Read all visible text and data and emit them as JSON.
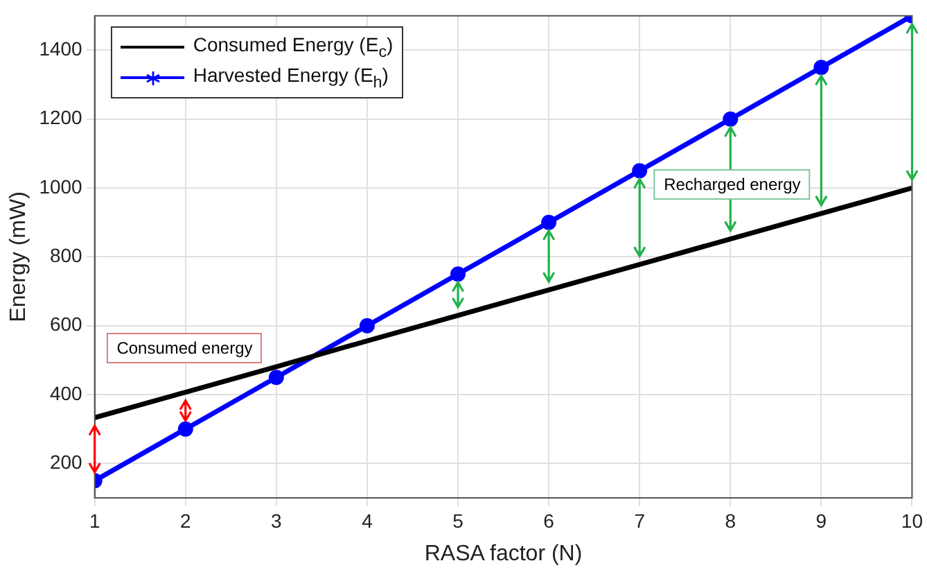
{
  "chart_data": {
    "type": "line",
    "xlabel": "RASA factor (N)",
    "ylabel": "Energy (mW)",
    "x": [
      1,
      2,
      3,
      4,
      5,
      6,
      7,
      8,
      9,
      10
    ],
    "series": [
      {
        "name": "Consumed Energy (E$_{c}$)",
        "color": "#000000",
        "marker": "none",
        "values": [
          333,
          407,
          481,
          556,
          630,
          704,
          778,
          852,
          926,
          1000
        ]
      },
      {
        "name": "Harvested Energy (E$_{h}$)",
        "color": "#0000ff",
        "marker": "circle",
        "values": [
          150,
          300,
          450,
          600,
          750,
          900,
          1050,
          1200,
          1350,
          1500
        ]
      }
    ],
    "xlim": [
      1,
      10
    ],
    "xticks": [
      1,
      2,
      3,
      4,
      5,
      6,
      7,
      8,
      9,
      10
    ],
    "ylim": [
      100,
      1500
    ],
    "yticks": [
      200,
      400,
      600,
      800,
      1000,
      1200,
      1400
    ],
    "grid": true,
    "legend": "top left",
    "line_style": "solid",
    "annotations": [
      "Consumed energy",
      "Recharged energy"
    ]
  }
}
